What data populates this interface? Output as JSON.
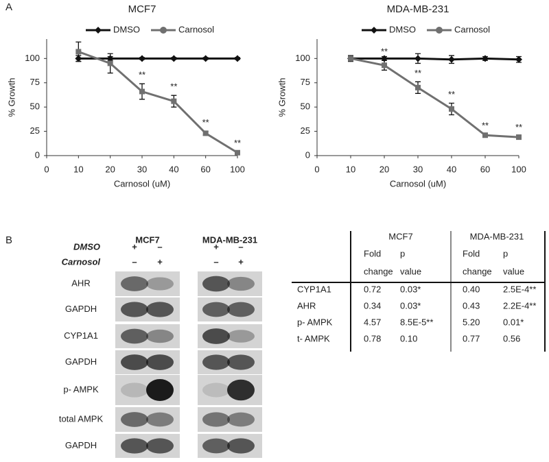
{
  "panel_labels": [
    "A",
    "B"
  ],
  "chart_data": [
    {
      "type": "line",
      "title": "MCF7",
      "x_label": "Carnosol (uM)",
      "y_label": "% Growth",
      "categories": [
        "0",
        "10",
        "20",
        "30",
        "40",
        "60",
        "100"
      ],
      "ylim": [
        0,
        120
      ],
      "yticks": [
        0,
        25,
        50,
        75,
        100
      ],
      "legend": "top",
      "series": [
        {
          "name": "DMSO",
          "color": "#111111",
          "marker": "diamond",
          "values": [
            null,
            100,
            100,
            100,
            100,
            100,
            100
          ],
          "errors": [
            null,
            3,
            2,
            1,
            1,
            1,
            1
          ],
          "significance": [
            null,
            null,
            null,
            null,
            null,
            null,
            null
          ]
        },
        {
          "name": "Carnosol",
          "color": "#707070",
          "marker": "circle",
          "values": [
            null,
            107,
            95,
            66,
            56,
            23,
            3
          ],
          "errors": [
            null,
            10,
            10,
            8,
            6,
            2,
            1
          ],
          "significance": [
            null,
            null,
            null,
            "**",
            "**",
            "**",
            "**"
          ]
        }
      ]
    },
    {
      "type": "line",
      "title": "MDA-MB-231",
      "x_label": "Carnosol (uM)",
      "y_label": "% Growth",
      "categories": [
        "0",
        "10",
        "20",
        "30",
        "40",
        "60",
        "100"
      ],
      "ylim": [
        0,
        120
      ],
      "yticks": [
        0,
        25,
        50,
        75,
        100
      ],
      "legend": "top",
      "series": [
        {
          "name": "DMSO",
          "color": "#111111",
          "marker": "diamond",
          "values": [
            null,
            100,
            100,
            100,
            99,
            100,
            99
          ],
          "errors": [
            null,
            3,
            2,
            5,
            4,
            2,
            3
          ],
          "significance": [
            null,
            null,
            null,
            null,
            null,
            null,
            null
          ]
        },
        {
          "name": "Carnosol",
          "color": "#707070",
          "marker": "circle",
          "values": [
            null,
            100,
            93,
            70,
            48,
            21,
            19
          ],
          "errors": [
            null,
            2,
            5,
            6,
            6,
            1,
            1
          ],
          "significance": [
            null,
            null,
            "**",
            "**",
            "**",
            "**",
            "**"
          ]
        }
      ]
    }
  ],
  "blot": {
    "cell_lines": [
      "MCF7",
      "MDA-MB-231"
    ],
    "treatments": [
      {
        "label": "DMSO",
        "signs": [
          "+",
          "–",
          "+",
          "–"
        ]
      },
      {
        "label": "Carnosol",
        "signs": [
          "–",
          "+",
          "–",
          "+"
        ]
      }
    ],
    "rows": [
      "AHR",
      "GAPDH",
      "CYP1A1",
      "GAPDH",
      "p- AMPK",
      "total AMPK",
      "GAPDH"
    ]
  },
  "table": {
    "groups": [
      "MCF7",
      "MDA-MB-231"
    ],
    "subheaders": [
      [
        "Fold",
        "change"
      ],
      [
        "p",
        "value"
      ],
      [
        "Fold",
        "change"
      ],
      [
        "p",
        "value"
      ]
    ],
    "rows": [
      [
        "CYP1A1",
        "0.72",
        "0.03*",
        "0.40",
        "2.5E-4**"
      ],
      [
        "AHR",
        "0.34",
        "0.03*",
        "0.43",
        "2.2E-4**"
      ],
      [
        "p- AMPK",
        "4.57",
        "8.5E-5**",
        "5.20",
        "0.01*"
      ],
      [
        "t- AMPK",
        "0.78",
        "0.10",
        "0.77",
        "0.56"
      ]
    ]
  }
}
